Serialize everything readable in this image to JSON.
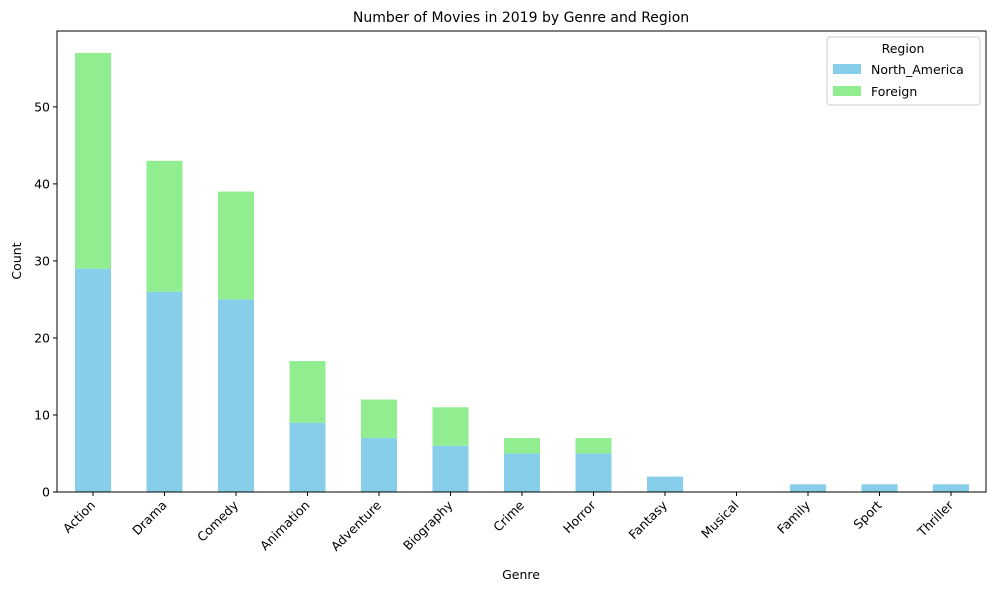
{
  "chart_data": {
    "type": "bar",
    "stacked": true,
    "title": "Number of Movies in 2019 by Genre and Region",
    "xlabel": "Genre",
    "ylabel": "Count",
    "ylim": [
      0,
      59.85
    ],
    "yticks": [
      0,
      10,
      20,
      30,
      40,
      50
    ],
    "categories": [
      "Action",
      "Drama",
      "Comedy",
      "Animation",
      "Adventure",
      "Biography",
      "Crime",
      "Horror",
      "Fantasy",
      "Musical",
      "Family",
      "Sport",
      "Thriller"
    ],
    "series": [
      {
        "name": "North_America",
        "color": "#87CEEB",
        "values": [
          29,
          26,
          25,
          9,
          7,
          6,
          5,
          5,
          2,
          0,
          1,
          1,
          1
        ]
      },
      {
        "name": "Foreign",
        "color": "#90EE90",
        "values": [
          28,
          17,
          14,
          8,
          5,
          5,
          2,
          2,
          0,
          0,
          0,
          0,
          0
        ]
      }
    ],
    "legend": {
      "title": "Region",
      "position": "top-right"
    },
    "grid": false
  }
}
